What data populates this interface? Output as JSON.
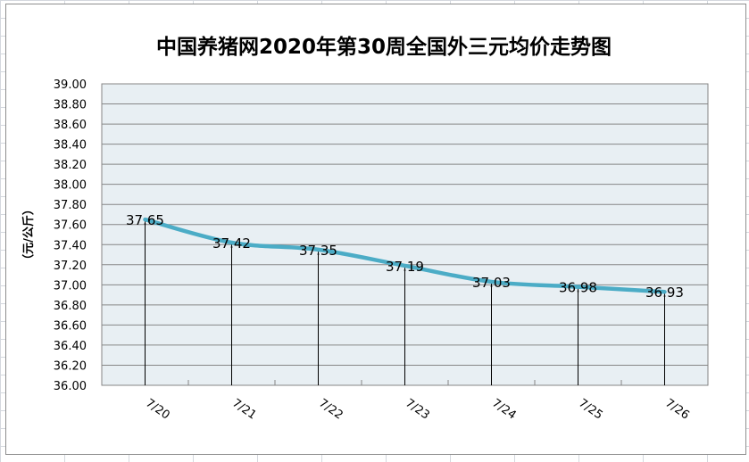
{
  "chart_data": {
    "type": "line",
    "title": "中国养猪网2020年第30周全国外三元均价走势图",
    "xlabel": "",
    "ylabel": "（元/公斤）",
    "categories": [
      "7/20",
      "7/21",
      "7/22",
      "7/23",
      "7/24",
      "7/25",
      "7/26"
    ],
    "values": [
      37.65,
      37.42,
      37.35,
      37.19,
      37.03,
      36.98,
      36.93
    ],
    "data_labels": [
      "37.65",
      "37.42",
      "37.35",
      "37.19",
      "37.03",
      "36.98",
      "36.93"
    ],
    "ylim": [
      36.0,
      39.0
    ],
    "ystep": 0.2,
    "yticks": [
      "36.00",
      "36.20",
      "36.40",
      "36.60",
      "36.80",
      "37.00",
      "37.20",
      "37.40",
      "37.60",
      "37.80",
      "38.00",
      "38.20",
      "38.40",
      "38.60",
      "38.80",
      "39.00"
    ],
    "grid": true,
    "drop_lines": true,
    "legend": "none",
    "colors": {
      "line": "#4bacc6",
      "plot_bg": "#e8eff3",
      "grid": "#868686"
    }
  }
}
